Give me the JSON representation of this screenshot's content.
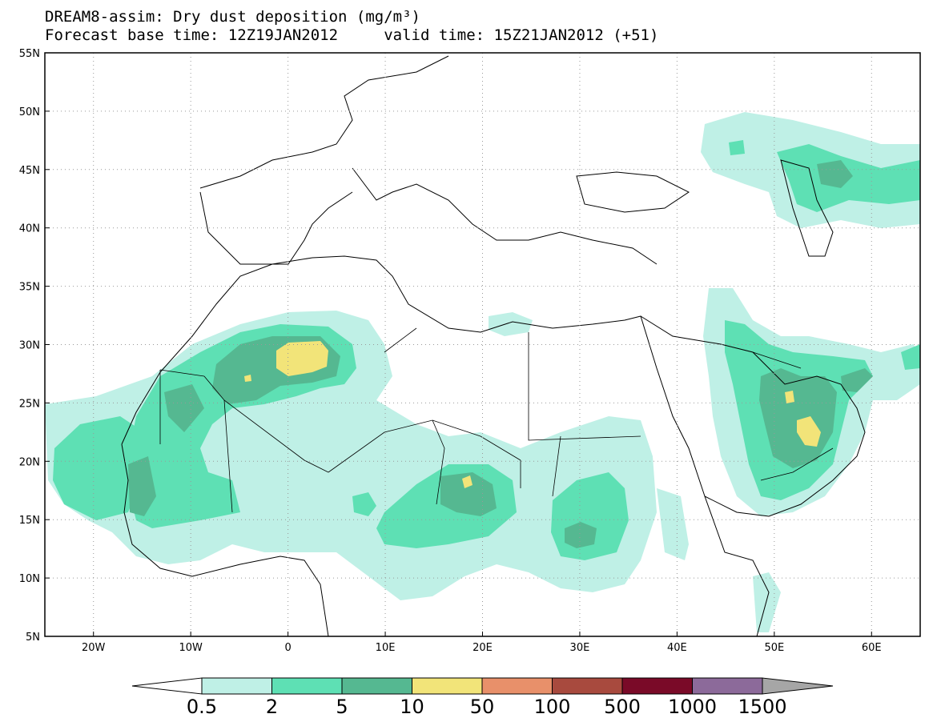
{
  "title": {
    "line1": "DREAM8-assim: Dry dust deposition (mg/m³)",
    "line2": "Forecast base time: 12Z19JAN2012     valid time: 15Z21JAN2012 (+51)"
  },
  "map": {
    "lon_range": [
      -25,
      65
    ],
    "lat_range": [
      5,
      55
    ],
    "lat_ticks": [
      {
        "value": 55,
        "label": "55N"
      },
      {
        "value": 50,
        "label": "50N"
      },
      {
        "value": 45,
        "label": "45N"
      },
      {
        "value": 40,
        "label": "40N"
      },
      {
        "value": 35,
        "label": "35N"
      },
      {
        "value": 30,
        "label": "30N"
      },
      {
        "value": 25,
        "label": "25N"
      },
      {
        "value": 20,
        "label": "20N"
      },
      {
        "value": 15,
        "label": "15N"
      },
      {
        "value": 10,
        "label": "10N"
      },
      {
        "value": 5,
        "label": "5N"
      }
    ],
    "lon_ticks": [
      {
        "value": -20,
        "label": "20W"
      },
      {
        "value": -10,
        "label": "10W"
      },
      {
        "value": 0,
        "label": "0"
      },
      {
        "value": 10,
        "label": "10E"
      },
      {
        "value": 20,
        "label": "20E"
      },
      {
        "value": 30,
        "label": "30E"
      },
      {
        "value": 40,
        "label": "40E"
      },
      {
        "value": 50,
        "label": "50E"
      },
      {
        "value": 60,
        "label": "60E"
      }
    ],
    "grid": "dotted"
  },
  "legend": {
    "colors": [
      "#ffffff",
      "#bff0e6",
      "#5ee0b4",
      "#55b891",
      "#f2e479",
      "#e8906a",
      "#a84a3e",
      "#7a0a28",
      "#8c6a9a",
      "#a6a6a6"
    ],
    "labels": [
      "0.5",
      "2",
      "5",
      "10",
      "50",
      "100",
      "500",
      "1000",
      "1500"
    ]
  },
  "colors": {
    "level_1": "#bff0e6",
    "level_2": "#5ee0b4",
    "level_3": "#55b891",
    "level_4": "#f2e479"
  }
}
